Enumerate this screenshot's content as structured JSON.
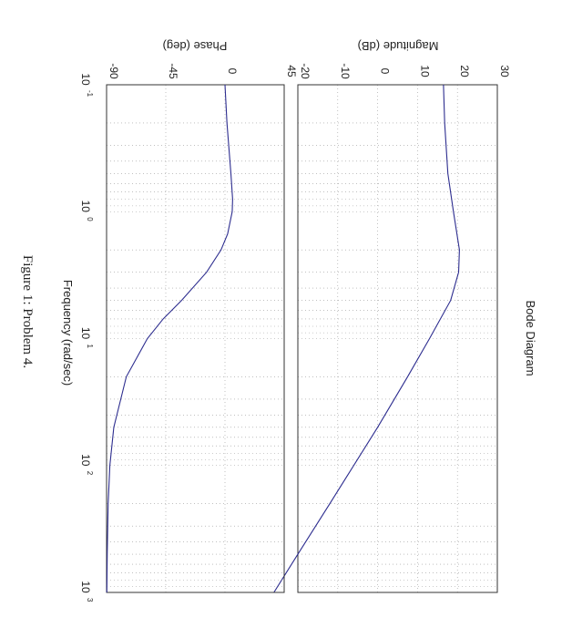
{
  "chart_data": [
    {
      "type": "line",
      "panel": "magnitude",
      "title": "Bode Diagram",
      "xlabel": "Frequency  (rad/sec)",
      "ylabel": "Magnitude (dB)",
      "xscale": "log",
      "xlim": [
        0.1,
        1000
      ],
      "ylim": [
        -20,
        30
      ],
      "yticks": [
        -20,
        -10,
        0,
        10,
        20,
        30
      ],
      "grid": true,
      "series": [
        {
          "x": [
            0.1,
            0.2,
            0.5,
            1,
            2,
            3,
            5,
            10,
            20,
            50,
            100,
            200,
            500,
            1000
          ],
          "y": [
            16.5,
            16.8,
            17.6,
            19.0,
            20.5,
            20.3,
            18.3,
            13.0,
            7.5,
            0.0,
            -6.0,
            -12.0,
            -20.0,
            -26.0
          ]
        }
      ]
    },
    {
      "type": "line",
      "panel": "phase",
      "xlabel": "Frequency  (rad/sec)",
      "ylabel": "Phase (deg)",
      "xscale": "log",
      "xlim": [
        0.1,
        1000
      ],
      "ylim": [
        -90,
        45
      ],
      "yticks": [
        -90,
        -45,
        0,
        45
      ],
      "grid": true,
      "series": [
        {
          "x": [
            0.1,
            0.2,
            0.5,
            0.8,
            1,
            1.5,
            2,
            3,
            5,
            7,
            10,
            20,
            50,
            100,
            200,
            500,
            1000
          ],
          "y": [
            0,
            1.5,
            4.5,
            5.8,
            5.5,
            2,
            -3,
            -14,
            -33,
            -47,
            -59,
            -75,
            -84.5,
            -87.5,
            -88.8,
            -89.5,
            -89.8
          ]
        }
      ]
    }
  ],
  "axes": {
    "tick_base": "10",
    "x_exponents": [
      "-1",
      "0",
      "1",
      "2",
      "3"
    ],
    "mag_ytick_labels": [
      "-20",
      "-10",
      "0",
      "10",
      "20",
      "30"
    ],
    "phase_ytick_labels": [
      "-90",
      "-45",
      "0",
      "45"
    ]
  },
  "caption": "Figure 1: Problem 4."
}
